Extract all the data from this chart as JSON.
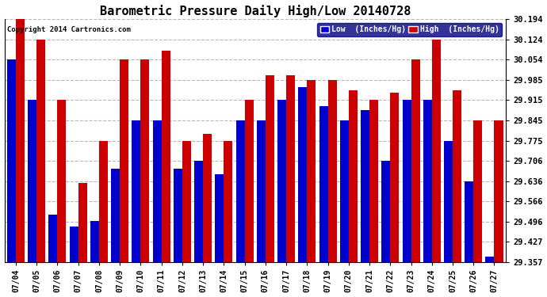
{
  "title": "Barometric Pressure Daily High/Low 20140728",
  "copyright": "Copyright 2014 Cartronics.com",
  "legend_low": "Low  (Inches/Hg)",
  "legend_high": "High  (Inches/Hg)",
  "low_color": "#0000cc",
  "high_color": "#cc0000",
  "background_color": "#ffffff",
  "grid_color": "#b8b8b8",
  "dates": [
    "07/04",
    "07/05",
    "07/06",
    "07/07",
    "07/08",
    "07/09",
    "07/10",
    "07/11",
    "07/12",
    "07/13",
    "07/14",
    "07/15",
    "07/16",
    "07/17",
    "07/18",
    "07/19",
    "07/20",
    "07/21",
    "07/22",
    "07/23",
    "07/24",
    "07/25",
    "07/26",
    "07/27"
  ],
  "low_values": [
    30.054,
    29.915,
    29.52,
    29.48,
    29.5,
    29.68,
    29.845,
    29.845,
    29.68,
    29.706,
    29.66,
    29.845,
    29.845,
    29.915,
    29.96,
    29.895,
    29.845,
    29.88,
    29.706,
    29.915,
    29.915,
    29.775,
    29.636,
    29.375
  ],
  "high_values": [
    30.194,
    30.124,
    29.915,
    29.63,
    29.775,
    30.054,
    30.054,
    30.084,
    29.775,
    29.8,
    29.775,
    29.915,
    30.0,
    30.0,
    29.985,
    29.985,
    29.95,
    29.915,
    29.94,
    30.054,
    30.124,
    29.95,
    29.845,
    29.845
  ],
  "ymin": 29.357,
  "ymax": 30.194,
  "yticks": [
    29.357,
    29.427,
    29.496,
    29.566,
    29.636,
    29.706,
    29.775,
    29.845,
    29.915,
    29.985,
    30.054,
    30.124,
    30.194
  ],
  "ytick_labels": [
    "29.357",
    "29.427",
    "29.496",
    "29.566",
    "29.636",
    "29.706",
    "29.775",
    "29.845",
    "29.915",
    "29.985",
    "30.054",
    "30.124",
    "30.194"
  ],
  "bar_width": 0.42,
  "figsize": [
    6.9,
    3.75
  ],
  "dpi": 100
}
